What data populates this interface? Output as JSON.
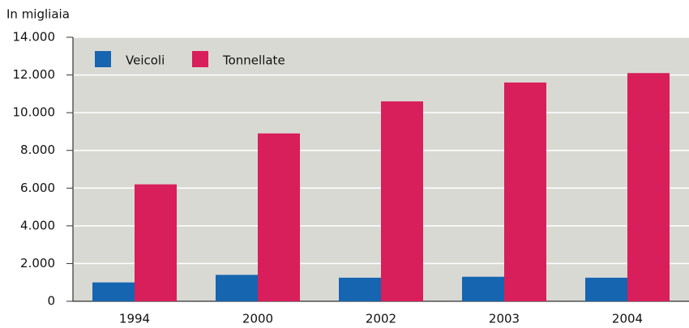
{
  "chart_data": {
    "type": "bar",
    "y_label": "In migliaia",
    "categories": [
      "1994",
      "2000",
      "2002",
      "2003",
      "2004"
    ],
    "series": [
      {
        "name": "Veicoli",
        "color": "#1565b0",
        "values": [
          1000,
          1400,
          1250,
          1300,
          1250
        ]
      },
      {
        "name": "Tonnellate",
        "color": "#d81e5b",
        "values": [
          6200,
          8900,
          10600,
          11600,
          12100
        ]
      }
    ],
    "ylim": [
      0,
      14000
    ],
    "yticks": [
      0,
      {
        "value": 2000,
        "label": "2.000"
      },
      {
        "value": 4000,
        "label": "4.000"
      },
      {
        "value": 6000,
        "label": "6.000"
      },
      {
        "value": 8000,
        "label": "8.000"
      },
      {
        "value": 10000,
        "label": "10.000"
      },
      {
        "value": 12000,
        "label": "12.000"
      },
      {
        "value": 14000,
        "label": "14.000"
      }
    ],
    "grid": true,
    "legend": "top-left"
  }
}
